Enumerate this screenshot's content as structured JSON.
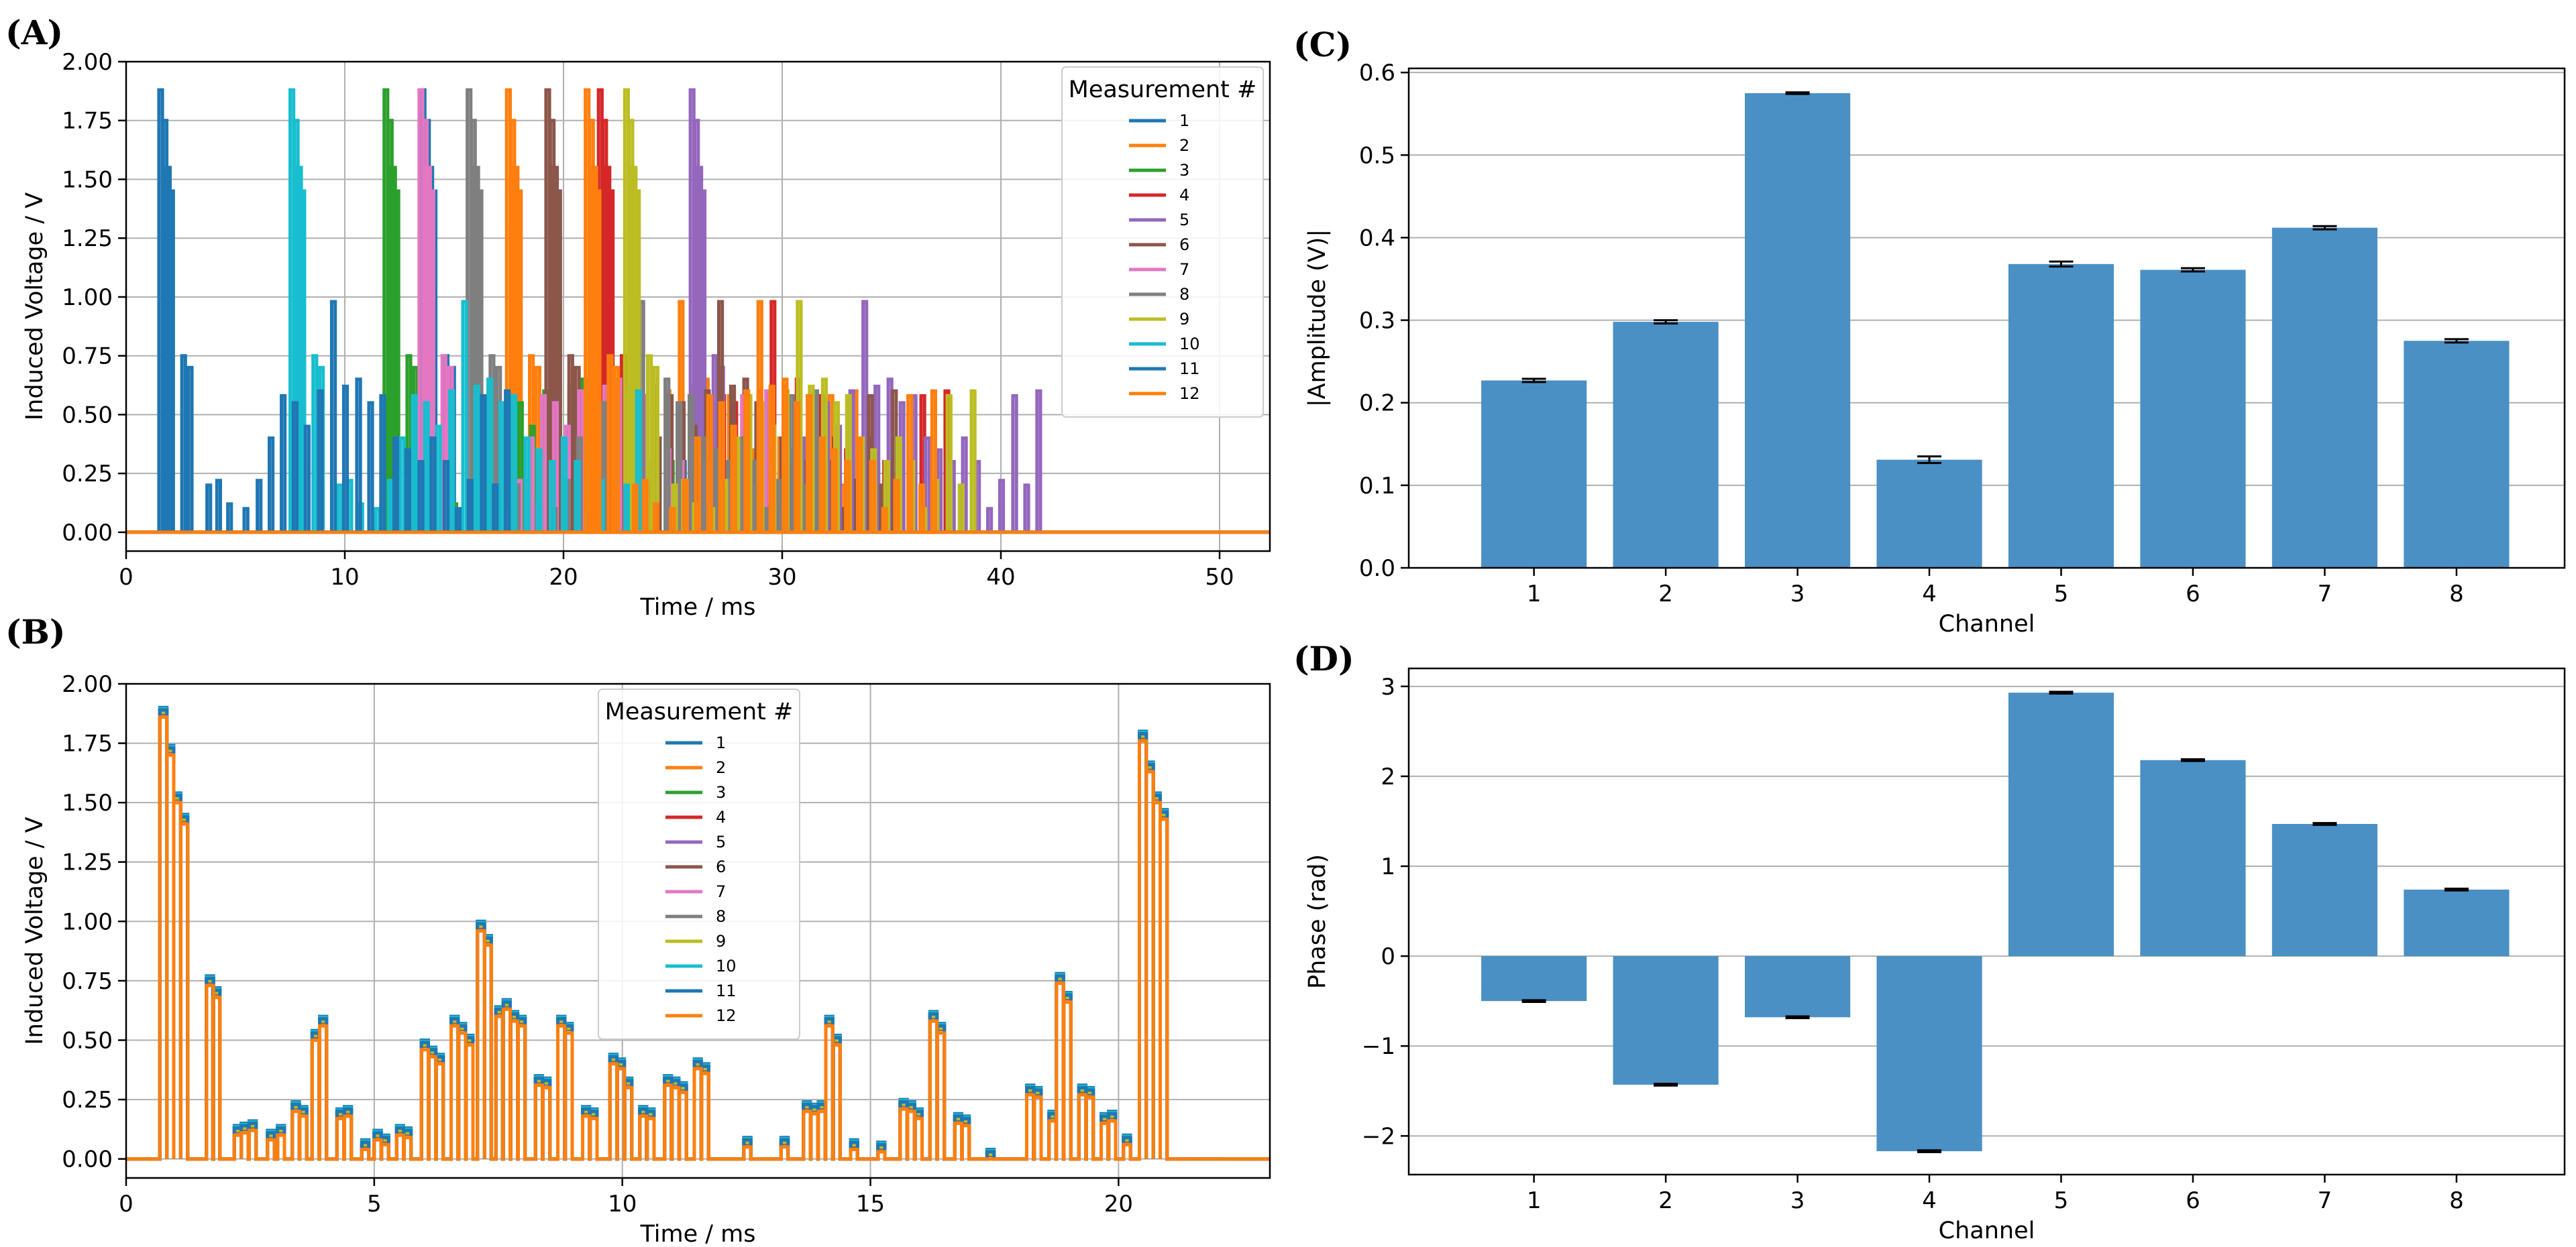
{
  "colors": {
    "bar": "#4a90c4",
    "grid": "#b0b0b0",
    "series": [
      "#1f77b4",
      "#ff7f0e",
      "#2ca02c",
      "#d62728",
      "#9467bd",
      "#8c564b",
      "#e377c2",
      "#7f7f7f",
      "#bcbd22",
      "#17becf",
      "#1f77b4",
      "#ff7f0e"
    ]
  },
  "chart_data": [
    {
      "id": "A",
      "panel_label": "(A)",
      "type": "line",
      "xlabel": "Time / ms",
      "ylabel": "Induced Voltage / V",
      "xlim": [
        0,
        52.3
      ],
      "ylim": [
        -0.08,
        2.0
      ],
      "xticks": [
        0,
        10,
        20,
        30,
        40,
        50
      ],
      "xtick_labels": [
        "0",
        "10",
        "20",
        "30",
        "40",
        "50"
      ],
      "yticks": [
        0,
        0.25,
        0.5,
        0.75,
        1.0,
        1.25,
        1.5,
        1.75,
        2.0
      ],
      "ytick_labels": [
        "0.00",
        "0.25",
        "0.50",
        "0.75",
        "1.00",
        "1.25",
        "1.50",
        "1.75",
        "2.00"
      ],
      "grid": true,
      "legend": {
        "title": "Measurement #",
        "position": "top-right",
        "entries": [
          "1",
          "2",
          "3",
          "4",
          "5",
          "6",
          "7",
          "8",
          "9",
          "10",
          "11",
          "12"
        ]
      },
      "pulse_template": {
        "dt": [
          0,
          0.2,
          0.35,
          0.5,
          1.05,
          1.35,
          2.2,
          2.65,
          3.15,
          3.9,
          4.5,
          5.05,
          5.6,
          6.15,
          6.7,
          7.3,
          7.9,
          8.45,
          9.05,
          9.6,
          10.15,
          10.75,
          11.3,
          11.9,
          12.45,
          13.05,
          13.6,
          14.15,
          14.75,
          15.3,
          15.85
        ],
        "v": [
          1.88,
          1.75,
          1.55,
          1.45,
          0.75,
          0.7,
          0.2,
          0.22,
          0.12,
          0.1,
          0.22,
          0.4,
          0.58,
          0.55,
          0.45,
          0.6,
          0.98,
          0.62,
          0.65,
          0.55,
          0.58,
          0.4,
          0.35,
          0.3,
          0.4,
          0.3,
          0.1,
          0.22,
          0.58,
          0.2,
          0.6
        ],
        "width": 0.16
      },
      "series": [
        {
          "name": "1",
          "color_index": 0,
          "start": 13.5
        },
        {
          "name": "2",
          "color_index": 1,
          "start": 17.4
        },
        {
          "name": "3",
          "color_index": 2,
          "start": 11.8
        },
        {
          "name": "4",
          "color_index": 3,
          "start": 21.6
        },
        {
          "name": "5",
          "color_index": 4,
          "start": 25.8
        },
        {
          "name": "6",
          "color_index": 5,
          "start": 19.2
        },
        {
          "name": "7",
          "color_index": 6,
          "start": 13.4
        },
        {
          "name": "8",
          "color_index": 7,
          "start": 15.6
        },
        {
          "name": "9",
          "color_index": 8,
          "start": 22.8
        },
        {
          "name": "10",
          "color_index": 9,
          "start": 7.5
        },
        {
          "name": "11",
          "color_index": 10,
          "start": 1.5
        },
        {
          "name": "12",
          "color_index": 11,
          "start": 21.0
        }
      ]
    },
    {
      "id": "B",
      "panel_label": "(B)",
      "type": "line",
      "xlabel": "Time / ms",
      "ylabel": "Induced Voltage / V",
      "xlim": [
        0,
        23.05
      ],
      "ylim": [
        -0.08,
        2.0
      ],
      "xticks": [
        0,
        5,
        10,
        15,
        20
      ],
      "xtick_labels": [
        "0",
        "5",
        "10",
        "15",
        "20"
      ],
      "yticks": [
        0,
        0.25,
        0.5,
        0.75,
        1.0,
        1.25,
        1.5,
        1.75,
        2.0
      ],
      "ytick_labels": [
        "0.00",
        "0.25",
        "0.50",
        "0.75",
        "1.00",
        "1.25",
        "1.50",
        "1.75",
        "2.00"
      ],
      "grid": true,
      "legend": {
        "title": "Measurement #",
        "position": "top-center",
        "entries": [
          "1",
          "2",
          "3",
          "4",
          "5",
          "6",
          "7",
          "8",
          "9",
          "10",
          "11",
          "12"
        ]
      },
      "segment_width": 0.14,
      "segments": [
        [
          0.68,
          1.88
        ],
        [
          0.82,
          1.72
        ],
        [
          0.96,
          1.52
        ],
        [
          1.1,
          1.43
        ],
        [
          1.62,
          0.75
        ],
        [
          1.75,
          0.7
        ],
        [
          2.18,
          0.12
        ],
        [
          2.32,
          0.13
        ],
        [
          2.48,
          0.14
        ],
        [
          2.85,
          0.1
        ],
        [
          3.05,
          0.12
        ],
        [
          3.35,
          0.22
        ],
        [
          3.5,
          0.2
        ],
        [
          3.75,
          0.52
        ],
        [
          3.9,
          0.58
        ],
        [
          4.25,
          0.19
        ],
        [
          4.4,
          0.2
        ],
        [
          4.75,
          0.06
        ],
        [
          5.0,
          0.1
        ],
        [
          5.15,
          0.08
        ],
        [
          5.45,
          0.12
        ],
        [
          5.6,
          0.11
        ],
        [
          5.95,
          0.48
        ],
        [
          6.1,
          0.45
        ],
        [
          6.25,
          0.42
        ],
        [
          6.55,
          0.58
        ],
        [
          6.7,
          0.55
        ],
        [
          6.85,
          0.5
        ],
        [
          7.08,
          0.98
        ],
        [
          7.22,
          0.92
        ],
        [
          7.45,
          0.62
        ],
        [
          7.6,
          0.65
        ],
        [
          7.75,
          0.6
        ],
        [
          7.9,
          0.58
        ],
        [
          8.25,
          0.33
        ],
        [
          8.4,
          0.32
        ],
        [
          8.7,
          0.58
        ],
        [
          8.85,
          0.55
        ],
        [
          9.2,
          0.2
        ],
        [
          9.35,
          0.19
        ],
        [
          9.75,
          0.42
        ],
        [
          9.9,
          0.4
        ],
        [
          10.05,
          0.32
        ],
        [
          10.35,
          0.2
        ],
        [
          10.5,
          0.19
        ],
        [
          10.85,
          0.33
        ],
        [
          11.0,
          0.32
        ],
        [
          11.15,
          0.3
        ],
        [
          11.45,
          0.4
        ],
        [
          11.6,
          0.38
        ],
        [
          12.45,
          0.07
        ],
        [
          13.2,
          0.07
        ],
        [
          13.65,
          0.22
        ],
        [
          13.8,
          0.21
        ],
        [
          13.95,
          0.22
        ],
        [
          14.1,
          0.58
        ],
        [
          14.25,
          0.5
        ],
        [
          14.6,
          0.06
        ],
        [
          15.15,
          0.05
        ],
        [
          15.6,
          0.23
        ],
        [
          15.75,
          0.22
        ],
        [
          15.9,
          0.19
        ],
        [
          16.2,
          0.6
        ],
        [
          16.35,
          0.55
        ],
        [
          16.7,
          0.17
        ],
        [
          16.85,
          0.16
        ],
        [
          17.35,
          0.02
        ],
        [
          18.15,
          0.29
        ],
        [
          18.3,
          0.28
        ],
        [
          18.6,
          0.18
        ],
        [
          18.75,
          0.76
        ],
        [
          18.9,
          0.68
        ],
        [
          19.2,
          0.29
        ],
        [
          19.35,
          0.28
        ],
        [
          19.65,
          0.17
        ],
        [
          19.8,
          0.18
        ],
        [
          20.1,
          0.08
        ],
        [
          20.42,
          1.78
        ],
        [
          20.56,
          1.65
        ],
        [
          20.7,
          1.52
        ],
        [
          20.84,
          1.45
        ]
      ],
      "series": [
        {
          "name": "1",
          "color_index": 0,
          "offset": 0.02
        },
        {
          "name": "2",
          "color_index": 1,
          "offset": 0.0
        },
        {
          "name": "3",
          "color_index": 2,
          "offset": -0.005
        },
        {
          "name": "4",
          "color_index": 3,
          "offset": 0.0
        },
        {
          "name": "5",
          "color_index": 4,
          "offset": 0.005
        },
        {
          "name": "6",
          "color_index": 5,
          "offset": -0.005
        },
        {
          "name": "7",
          "color_index": 6,
          "offset": 0.0
        },
        {
          "name": "8",
          "color_index": 7,
          "offset": 0.01
        },
        {
          "name": "9",
          "color_index": 8,
          "offset": 0.0
        },
        {
          "name": "10",
          "color_index": 9,
          "offset": 0.015
        },
        {
          "name": "11",
          "color_index": 10,
          "offset": 0.01
        },
        {
          "name": "12",
          "color_index": 11,
          "offset": -0.02
        }
      ]
    },
    {
      "id": "C",
      "panel_label": "(C)",
      "type": "bar",
      "xlabel": "Channel",
      "ylabel": "|Amplitude (V)|",
      "ylim": [
        0,
        0.605
      ],
      "yticks": [
        0,
        0.1,
        0.2,
        0.3,
        0.4,
        0.5,
        0.6
      ],
      "ytick_labels": [
        "0.0",
        "0.1",
        "0.2",
        "0.3",
        "0.4",
        "0.5",
        "0.6"
      ],
      "grid": true,
      "categories": [
        "1",
        "2",
        "3",
        "4",
        "5",
        "6",
        "7",
        "8"
      ],
      "values": [
        0.227,
        0.298,
        0.575,
        0.131,
        0.368,
        0.361,
        0.412,
        0.275
      ],
      "errors": [
        0.002,
        0.002,
        0.001,
        0.004,
        0.003,
        0.002,
        0.002,
        0.002
      ]
    },
    {
      "id": "D",
      "panel_label": "(D)",
      "type": "bar",
      "xlabel": "Channel",
      "ylabel": "Phase (rad)",
      "ylim": [
        -2.43,
        3.2
      ],
      "yticks": [
        -2,
        -1,
        0,
        1,
        2,
        3
      ],
      "ytick_labels": [
        "−2",
        "−1",
        "0",
        "1",
        "2",
        "3"
      ],
      "grid": true,
      "categories": [
        "1",
        "2",
        "3",
        "4",
        "5",
        "6",
        "7",
        "8"
      ],
      "values": [
        -0.5,
        -1.43,
        -0.68,
        -2.17,
        2.93,
        2.18,
        1.47,
        0.74
      ],
      "errors": [
        0.01,
        0.01,
        0.01,
        0.01,
        0.01,
        0.01,
        0.01,
        0.01
      ]
    }
  ]
}
